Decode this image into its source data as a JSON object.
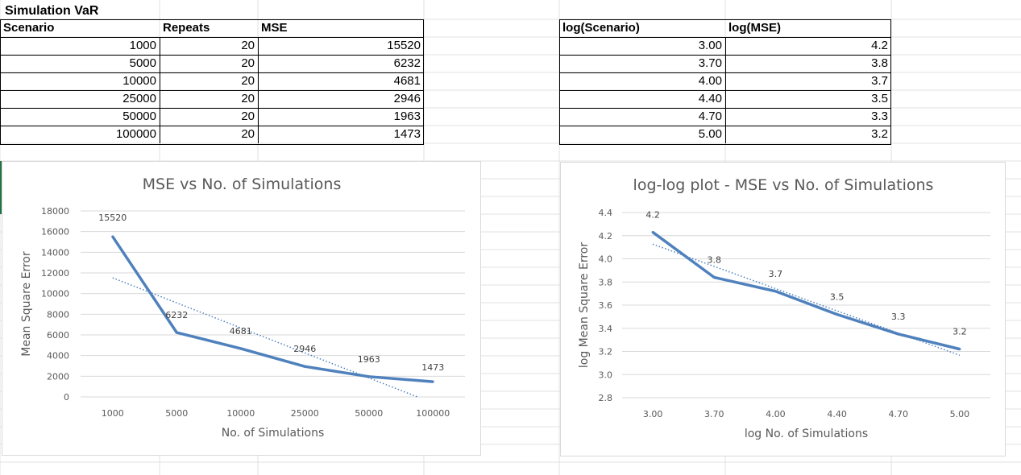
{
  "sheet": {
    "title": "Simulation VaR",
    "table1": {
      "headers": [
        "Scenario",
        "Repeats",
        "MSE"
      ],
      "rows": [
        [
          "1000",
          "20",
          "15520"
        ],
        [
          "5000",
          "20",
          "6232"
        ],
        [
          "10000",
          "20",
          "4681"
        ],
        [
          "25000",
          "20",
          "2946"
        ],
        [
          "50000",
          "20",
          "1963"
        ],
        [
          "100000",
          "20",
          "1473"
        ]
      ]
    },
    "table2": {
      "headers": [
        "log(Scenario)",
        "log(MSE)"
      ],
      "rows": [
        [
          "3.00",
          "4.2"
        ],
        [
          "3.70",
          "3.8"
        ],
        [
          "4.00",
          "3.7"
        ],
        [
          "4.40",
          "3.5"
        ],
        [
          "4.70",
          "3.3"
        ],
        [
          "5.00",
          "3.2"
        ]
      ]
    }
  },
  "colors": {
    "series": "#4f81bd",
    "gridline": "#d9d9d9",
    "excel_green": "#217346"
  },
  "chart_data": [
    {
      "type": "line",
      "title": "MSE vs No. of Simulations",
      "xlabel": "No. of Simulations",
      "ylabel": "Mean Square Error",
      "categories": [
        "1000",
        "5000",
        "10000",
        "25000",
        "50000",
        "100000"
      ],
      "series": [
        {
          "values": [
            15520,
            6232,
            4681,
            2946,
            1963,
            1473
          ]
        }
      ],
      "data_labels": [
        "15520",
        "6232",
        "4681",
        "2946",
        "1963",
        "1473"
      ],
      "ylim": [
        0,
        18000
      ],
      "yticks": [
        "0",
        "2000",
        "4000",
        "6000",
        "8000",
        "10000",
        "12000",
        "14000",
        "16000",
        "18000"
      ],
      "trendline": "linear, dotted",
      "grid": true,
      "legend": "none"
    },
    {
      "type": "line",
      "title": "log-log plot - MSE vs No. of Simulations",
      "xlabel": "log No. of Simulations",
      "ylabel": "log Mean Square Error",
      "categories": [
        "3.00",
        "3.70",
        "4.00",
        "4.40",
        "4.70",
        "5.00"
      ],
      "series": [
        {
          "values": [
            4.23,
            3.84,
            3.72,
            3.52,
            3.35,
            3.22
          ]
        }
      ],
      "data_labels": [
        "4.2",
        "3.8",
        "3.7",
        "3.5",
        "3.3",
        "3.2"
      ],
      "ylim": [
        2.8,
        4.4
      ],
      "yticks": [
        "2.8",
        "3.0",
        "3.2",
        "3.4",
        "3.6",
        "3.8",
        "4.0",
        "4.2",
        "4.4"
      ],
      "trendline": "linear, dotted",
      "grid": true,
      "legend": "none"
    }
  ]
}
